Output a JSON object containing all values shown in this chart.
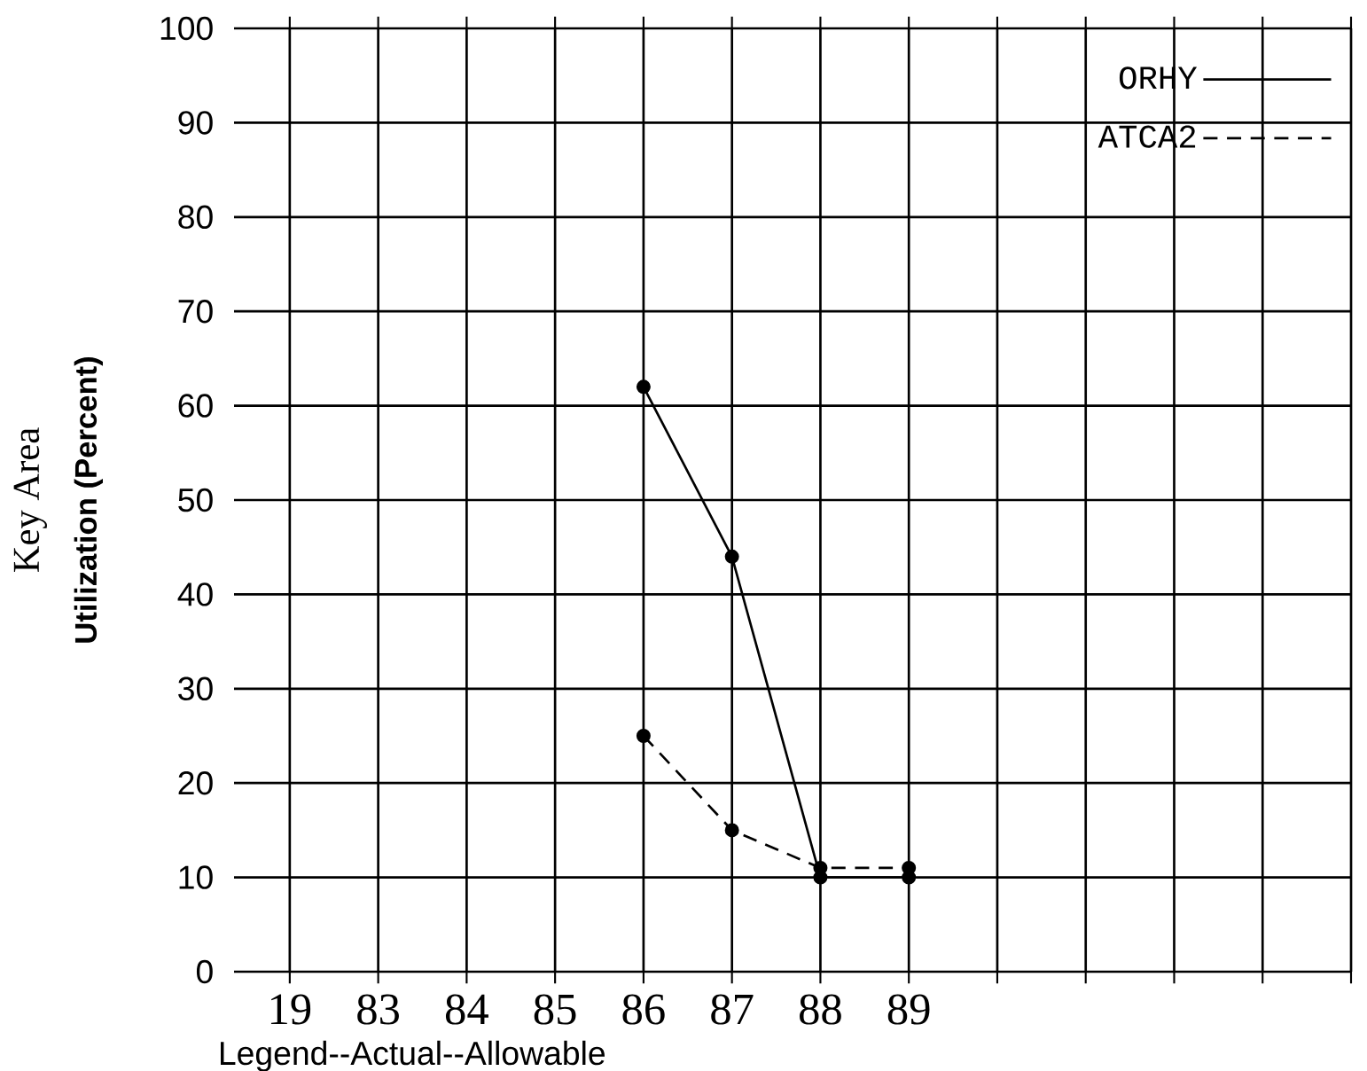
{
  "chart_data": {
    "type": "line",
    "ylabel": "Key Area",
    "categories": [
      "19",
      "83",
      "84",
      "85",
      "86",
      "87",
      "88",
      "89",
      null,
      null,
      null,
      null,
      null
    ],
    "series": [
      {
        "name": "ORHY",
        "color": "#000000",
        "line_style": "solid",
        "values": [
          null,
          null,
          null,
          null,
          62,
          44,
          10,
          10,
          null,
          null,
          null,
          null,
          null
        ]
      },
      {
        "name": "ATCA2",
        "color": "#000000",
        "line_style": "dashed",
        "values": [
          null,
          null,
          null,
          null,
          25,
          15,
          11,
          11,
          null,
          null,
          null,
          null,
          null
        ]
      }
    ],
    "ylim": [
      0,
      100
    ],
    "yticks": [
      0,
      10,
      20,
      30,
      40,
      50,
      60,
      70,
      80,
      90,
      100
    ],
    "grid": true,
    "legend": "top right",
    "marker": "circle",
    "annotations": [
      "Utilization (Percent)",
      "Legend--Actual--Allowable"
    ]
  }
}
